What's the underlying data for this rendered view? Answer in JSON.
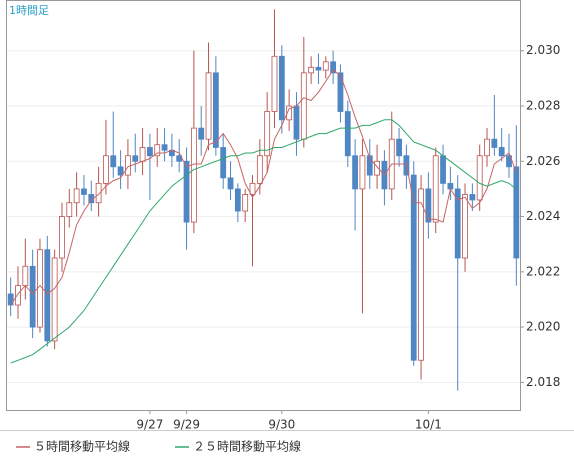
{
  "chart_data": {
    "type": "candlestick",
    "title": "1時間足",
    "categories": [
      null,
      null,
      null,
      null,
      null,
      null,
      null,
      null,
      null,
      null,
      null,
      null,
      null,
      null,
      null,
      null,
      null,
      null,
      null,
      "9/27",
      null,
      null,
      null,
      null,
      "9/29",
      null,
      null,
      null,
      null,
      null,
      null,
      null,
      null,
      null,
      null,
      null,
      null,
      "9/30",
      null,
      null,
      null,
      null,
      null,
      null,
      null,
      null,
      null,
      null,
      null,
      null,
      null,
      null,
      null,
      null,
      null,
      null,
      null,
      "10/1",
      null,
      null,
      null,
      null,
      null,
      null,
      null,
      null,
      null,
      null,
      null,
      null
    ],
    "open": [
      2.0212,
      2.0208,
      2.0215,
      2.0222,
      2.02,
      2.0228,
      2.0195,
      2.0225,
      2.024,
      2.0245,
      2.025,
      2.0248,
      2.0245,
      2.0252,
      2.0262,
      2.0258,
      2.0255,
      2.0262,
      2.026,
      2.0265,
      2.0262,
      2.0266,
      2.0264,
      2.0262,
      2.026,
      2.0238,
      2.0272,
      2.0268,
      2.0292,
      2.0265,
      2.0254,
      2.025,
      2.0242,
      2.0248,
      2.0252,
      2.0262,
      2.0278,
      2.0298,
      2.0275,
      2.028,
      2.0268,
      2.0292,
      2.0294,
      2.0293,
      2.0296,
      2.0292,
      2.0278,
      2.0262,
      2.025,
      2.0262,
      2.0255,
      2.026,
      2.025,
      2.0268,
      2.0262,
      2.0255,
      2.0188,
      2.025,
      2.0238,
      2.0262,
      2.0252,
      2.025,
      2.0225,
      2.0248,
      2.0246,
      2.0262,
      2.0268,
      2.0265,
      2.0262,
      2.0258
    ],
    "high": [
      2.0218,
      2.0222,
      2.0232,
      2.0228,
      2.0232,
      2.0233,
      2.0228,
      2.0245,
      2.025,
      2.0256,
      2.0255,
      2.0253,
      2.0258,
      2.0275,
      2.0278,
      2.0264,
      2.0268,
      2.027,
      2.0272,
      2.027,
      2.0272,
      2.0272,
      2.027,
      2.0268,
      2.0265,
      2.03,
      2.028,
      2.0303,
      2.0298,
      2.027,
      2.026,
      2.0252,
      2.025,
      2.0255,
      2.0268,
      2.0285,
      2.0315,
      2.0302,
      2.0286,
      2.0285,
      2.0305,
      2.0298,
      2.0299,
      2.0298,
      2.03,
      2.0295,
      2.0282,
      2.0268,
      2.0268,
      2.0268,
      2.0266,
      2.0264,
      2.0278,
      2.0272,
      2.0266,
      2.026,
      2.0255,
      2.0256,
      2.0265,
      2.0266,
      2.0258,
      2.0255,
      2.0252,
      2.0252,
      2.0266,
      2.0272,
      2.0284,
      2.0272,
      2.027,
      2.0273
    ],
    "low": [
      2.0204,
      2.0203,
      2.021,
      2.0196,
      2.0198,
      2.0193,
      2.0192,
      2.022,
      2.0236,
      2.024,
      2.0244,
      2.0242,
      2.024,
      2.0248,
      2.0254,
      2.025,
      2.025,
      2.0256,
      2.0255,
      2.0246,
      2.0258,
      2.026,
      2.0258,
      2.0256,
      2.0228,
      2.0234,
      2.0262,
      2.0264,
      2.0262,
      2.025,
      2.0246,
      2.0238,
      2.0238,
      2.0222,
      2.0248,
      2.0256,
      2.0272,
      2.027,
      2.0271,
      2.0262,
      2.0265,
      2.0288,
      2.0288,
      2.029,
      2.0288,
      2.0274,
      2.0258,
      2.0235,
      2.0205,
      2.025,
      2.025,
      2.0244,
      2.0246,
      2.0258,
      2.025,
      2.0186,
      2.0181,
      2.0232,
      2.0234,
      2.0248,
      2.0246,
      2.0177,
      2.022,
      2.0242,
      2.0242,
      2.0258,
      2.0262,
      2.026,
      2.0254,
      2.0215
    ],
    "close": [
      2.0208,
      2.0215,
      2.0222,
      2.02,
      2.0228,
      2.0195,
      2.0225,
      2.024,
      2.0245,
      2.025,
      2.0248,
      2.0245,
      2.0252,
      2.0262,
      2.0258,
      2.0255,
      2.0262,
      2.026,
      2.0265,
      2.0262,
      2.0266,
      2.0264,
      2.0262,
      2.026,
      2.0238,
      2.0272,
      2.0268,
      2.0292,
      2.0265,
      2.0254,
      2.025,
      2.0242,
      2.0248,
      2.0252,
      2.0262,
      2.0278,
      2.0298,
      2.0275,
      2.028,
      2.0268,
      2.0292,
      2.0294,
      2.0293,
      2.0296,
      2.0292,
      2.0278,
      2.0262,
      2.025,
      2.0262,
      2.0255,
      2.026,
      2.025,
      2.0268,
      2.0262,
      2.0255,
      2.0188,
      2.025,
      2.0238,
      2.0262,
      2.0252,
      2.025,
      2.0225,
      2.0248,
      2.0246,
      2.0262,
      2.0268,
      2.0265,
      2.0262,
      2.0258,
      2.0225
    ],
    "up_color": "#b85450",
    "down_color": "#4f86c4",
    "series": [
      {
        "name": "５時間移動平均線",
        "color": "#c86464",
        "values": [
          2.0208,
          2.0212,
          2.0215,
          2.0212,
          2.0215,
          2.0212,
          2.0214,
          2.0218,
          2.0227,
          2.0237,
          2.0242,
          2.0246,
          2.0248,
          2.0251,
          2.0253,
          2.0254,
          2.0258,
          2.0259,
          2.026,
          2.0261,
          2.0263,
          2.0263,
          2.0264,
          2.0263,
          2.0258,
          2.0259,
          2.0259,
          2.0266,
          2.0267,
          2.027,
          2.0266,
          2.0261,
          2.0252,
          2.0247,
          2.0251,
          2.0256,
          2.0268,
          2.0273,
          2.0279,
          2.028,
          2.0283,
          2.0282,
          2.0285,
          2.0289,
          2.0293,
          2.0291,
          2.0284,
          2.0276,
          2.0269,
          2.0261,
          2.0258,
          2.0255,
          2.0259,
          2.0259,
          2.0259,
          2.0245,
          2.0245,
          2.0239,
          2.0239,
          2.0238,
          2.025,
          2.0246,
          2.0247,
          2.0243,
          2.0245,
          2.025,
          2.0259,
          2.0261,
          2.0263,
          2.0256
        ]
      },
      {
        "name": "２５時間移動平均線",
        "color": "#2fa86a",
        "values": [
          2.0187,
          2.0188,
          2.0189,
          2.019,
          2.0192,
          2.0194,
          2.0196,
          2.0198,
          2.02,
          2.0203,
          2.0206,
          2.021,
          2.0214,
          2.0218,
          2.0222,
          2.0226,
          2.023,
          2.0234,
          2.0238,
          2.0242,
          2.0245,
          2.0248,
          2.0251,
          2.0253,
          2.0255,
          2.0257,
          2.0258,
          2.0259,
          2.026,
          2.0261,
          2.0262,
          2.0262,
          2.0263,
          2.0263,
          2.0264,
          2.0264,
          2.0265,
          2.0265,
          2.0266,
          2.0267,
          2.0268,
          2.0269,
          2.027,
          2.027,
          2.0271,
          2.0272,
          2.0272,
          2.0272,
          2.0273,
          2.0273,
          2.0274,
          2.0275,
          2.0275,
          2.0273,
          2.027,
          2.0267,
          2.0266,
          2.0265,
          2.0264,
          2.0262,
          2.026,
          2.0258,
          2.0256,
          2.0254,
          2.0252,
          2.0251,
          2.0252,
          2.0253,
          2.0252,
          2.025
        ]
      }
    ],
    "ylim": [
      2.017,
      2.0318
    ],
    "yticks": [
      2.018,
      {
        "value": 2.02,
        "label": "2.020"
      },
      2.022,
      2.024,
      2.026,
      2.028,
      {
        "value": 2.03,
        "label": "2.030"
      }
    ]
  }
}
